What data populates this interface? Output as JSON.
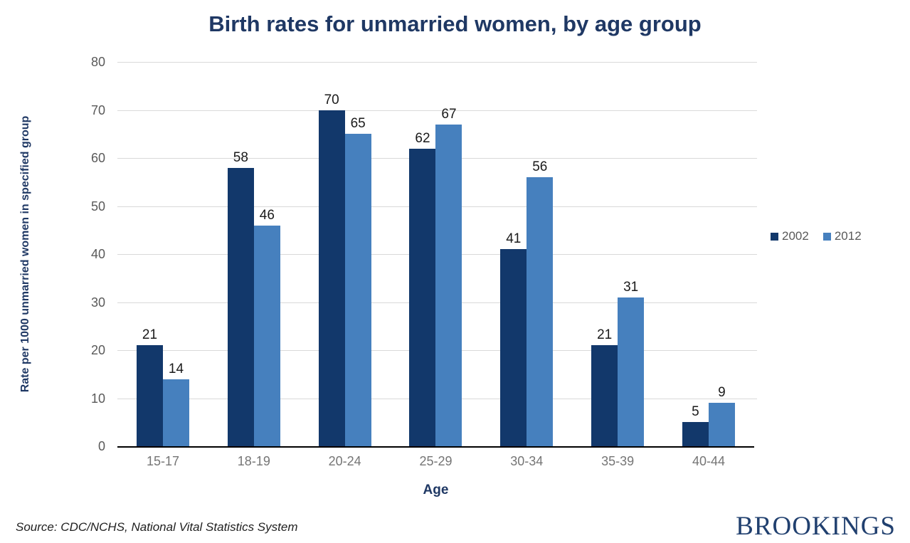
{
  "page": {
    "title": "Birth rates for unmarried women, by age group",
    "source_note": "Source: CDC/NCHS, National Vital Statistics System",
    "brand": "BROOKINGS"
  },
  "chart_data": {
    "type": "bar",
    "title": "Birth rates for unmarried women, by age group",
    "xlabel": "Age",
    "ylabel": "Rate per 1000 unmarried women in specified group",
    "categories": [
      "15-17",
      "18-19",
      "20-24",
      "25-29",
      "30-34",
      "35-39",
      "40-44"
    ],
    "series": [
      {
        "name": "2002",
        "color": "#12386B",
        "values": [
          21,
          58,
          70,
          62,
          41,
          21,
          5
        ]
      },
      {
        "name": "2012",
        "color": "#4680BE",
        "values": [
          14,
          46,
          65,
          67,
          56,
          31,
          9
        ]
      }
    ],
    "ylim": [
      0,
      80
    ],
    "yticks": [
      0,
      10,
      20,
      30,
      40,
      50,
      60,
      70,
      80
    ],
    "grid": "horizontal",
    "legend_position": "right",
    "colors": {
      "title": "#1F3864",
      "axis_label": "#1F3864",
      "tick_label": "#595959",
      "category_label": "#757575",
      "data_label": "#1a1a1a",
      "gridline": "#d9d9d9",
      "axis_line": "#000000",
      "legend_text": "#595959",
      "brand": "#21406F"
    }
  }
}
